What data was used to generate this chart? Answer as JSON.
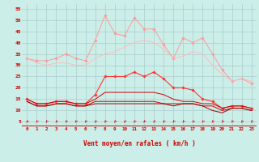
{
  "background_color": "#cceee8",
  "grid_color": "#aacccc",
  "xlabel": "Vent moyen/en rafales ( km/h )",
  "x_hours": [
    0,
    1,
    2,
    3,
    4,
    5,
    6,
    7,
    8,
    9,
    10,
    11,
    12,
    13,
    14,
    15,
    16,
    17,
    18,
    19,
    20,
    21,
    22,
    23
  ],
  "ylim": [
    3,
    57
  ],
  "yticks": [
    5,
    10,
    15,
    20,
    25,
    30,
    35,
    40,
    45,
    50,
    55
  ],
  "series": [
    {
      "name": "rafales_max",
      "color": "#ff9999",
      "linewidth": 0.7,
      "marker": "D",
      "markersize": 1.8,
      "values": [
        33,
        32,
        32,
        33,
        35,
        33,
        32,
        41,
        52,
        44,
        43,
        51,
        46,
        46,
        39,
        33,
        42,
        40,
        42,
        35,
        28,
        23,
        24,
        22
      ]
    },
    {
      "name": "rafales_moy",
      "color": "#ffbbbb",
      "linewidth": 0.7,
      "marker": null,
      "markersize": 0,
      "values": [
        33,
        31,
        30,
        31,
        31,
        30,
        30,
        33,
        35,
        36,
        38,
        40,
        41,
        40,
        37,
        33,
        34,
        36,
        35,
        30,
        26,
        23,
        24,
        23
      ]
    },
    {
      "name": "vent_max",
      "color": "#ff3333",
      "linewidth": 0.8,
      "marker": "D",
      "markersize": 1.8,
      "values": [
        15,
        13,
        13,
        14,
        14,
        13,
        13,
        17,
        25,
        25,
        25,
        27,
        25,
        27,
        24,
        20,
        20,
        19,
        15,
        14,
        11,
        12,
        12,
        11
      ]
    },
    {
      "name": "vent_moy_top",
      "color": "#cc0000",
      "linewidth": 0.7,
      "marker": null,
      "markersize": 0,
      "values": [
        15,
        13,
        13,
        14,
        14,
        13,
        13,
        15,
        18,
        18,
        18,
        18,
        18,
        18,
        17,
        15,
        14,
        14,
        13,
        13,
        11,
        12,
        12,
        11
      ]
    },
    {
      "name": "vent_moy_bot",
      "color": "#cc0000",
      "linewidth": 0.7,
      "marker": null,
      "markersize": 0,
      "values": [
        14,
        12,
        12,
        13,
        13,
        12,
        12,
        14,
        14,
        14,
        14,
        14,
        14,
        14,
        13,
        13,
        13,
        13,
        12,
        12,
        10,
        11,
        11,
        10
      ]
    },
    {
      "name": "vent_min",
      "color": "#990000",
      "linewidth": 0.7,
      "marker": null,
      "markersize": 0,
      "values": [
        14,
        12,
        12,
        13,
        13,
        12,
        12,
        13,
        13,
        13,
        13,
        13,
        13,
        13,
        13,
        12,
        13,
        13,
        12,
        10,
        9,
        11,
        11,
        10
      ]
    }
  ],
  "arrow_color": "#cc2222",
  "xlabel_color": "#cc0000",
  "tick_color": "#cc0000"
}
